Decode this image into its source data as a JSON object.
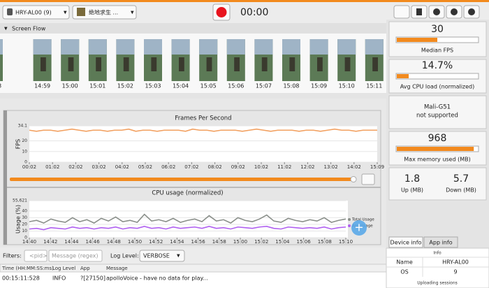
{
  "toolbar": {
    "device": "HRY-AL00 (9)",
    "app": "绝地求生 ...",
    "timer": "00:00"
  },
  "screen_flow": {
    "title": "Screen Flow",
    "frame_labels": [
      "58",
      "14:59",
      "15:00",
      "15:01",
      "15:02",
      "15:03",
      "15:04",
      "15:05",
      "15:06",
      "15:07",
      "15:08",
      "15:09",
      "15:10",
      "15:11"
    ]
  },
  "fps_chart": {
    "type": "line",
    "title": "Frames Per Second",
    "y_label": "FPS",
    "color": "#f2a060",
    "xtick_labels": [
      "00:02",
      "01:02",
      "02:02",
      "03:02",
      "04:02",
      "05:02",
      "06:02",
      "07:02",
      "08:02",
      "09:02",
      "10:02",
      "11:02",
      "12:02",
      "13:02",
      "14:02",
      "15:09"
    ],
    "ylim": [
      0,
      34.1
    ],
    "yticks": [
      0,
      10,
      20,
      34.1
    ],
    "values": [
      30,
      29,
      30,
      30,
      29,
      30,
      31,
      30,
      29,
      30,
      30,
      29,
      30,
      30,
      31,
      29,
      30,
      30,
      29,
      30,
      30,
      30,
      29,
      31,
      30,
      30,
      29,
      30,
      30,
      30,
      29,
      30,
      31,
      30,
      29,
      30,
      30,
      30,
      29,
      30,
      30,
      29,
      30,
      31,
      30,
      30,
      29,
      30,
      30,
      30
    ]
  },
  "cpu_chart": {
    "type": "line",
    "title": "CPU usage (normalized)",
    "y_label": "Usage (%)",
    "xtick_labels": [
      "14:40",
      "14:42",
      "14:44",
      "14:46",
      "14:48",
      "14:50",
      "14:52",
      "14:54",
      "14:56",
      "14:58",
      "15:00",
      "15:02",
      "15:04",
      "15:06",
      "15:08",
      "15:10"
    ],
    "ylim": [
      0,
      55.621
    ],
    "yticks": [
      0,
      10,
      20,
      30,
      40,
      {
        "value": 55.621,
        "label": "55,621"
      }
    ],
    "series": [
      {
        "name": "Total Usage",
        "color": "#8a8f8a",
        "values": [
          24,
          26,
          22,
          28,
          25,
          23,
          30,
          24,
          27,
          22,
          29,
          25,
          31,
          24,
          26,
          23,
          35,
          25,
          27,
          24,
          29,
          23,
          26,
          28,
          24,
          33,
          25,
          27,
          22,
          30,
          26,
          24,
          28,
          34,
          25,
          23,
          29,
          26,
          24,
          27,
          25,
          30,
          23,
          26,
          28
        ]
      },
      {
        "name": "App Usage",
        "color": "#b060f0",
        "values": [
          13,
          14,
          12,
          15,
          14,
          13,
          16,
          14,
          15,
          13,
          15,
          14,
          16,
          13,
          15,
          14,
          17,
          14,
          15,
          13,
          16,
          14,
          15,
          16,
          14,
          17,
          14,
          15,
          13,
          16,
          15,
          14,
          16,
          17,
          14,
          13,
          16,
          15,
          14,
          15,
          14,
          16,
          13,
          15,
          16
        ]
      }
    ]
  },
  "filters": {
    "label": "Filters:",
    "pid_placeholder": "<pid>",
    "message_placeholder": "Message (regex)",
    "log_level_label": "Log Level:",
    "log_level": "VERBOSE"
  },
  "log_table": {
    "headers": [
      "Time (HH:MM:SS:ms)",
      "Log Level",
      "App",
      "Message"
    ],
    "rows": [
      [
        "00:15:11:528",
        "INFO",
        "?[27150]",
        "apolloVoice - have no data for play..."
      ]
    ]
  },
  "metrics": {
    "median_fps": {
      "value": "30",
      "label": "Median FPS"
    },
    "avg_cpu": {
      "value": "14.7%",
      "label": "Avg CPU load (normalized)"
    },
    "gpu": {
      "name": "Mali-G51",
      "status": "not supported"
    },
    "max_memory": {
      "value": "968",
      "label": "Max memory used (MB)"
    },
    "up": {
      "value": "1.8",
      "label": "Up (MB)"
    },
    "down": {
      "value": "5.7",
      "label": "Down (MB)"
    }
  },
  "info_panel": {
    "tabs": [
      "Device info",
      "App info"
    ],
    "header": "Info",
    "rows": [
      [
        "Name",
        "HRY-AL00"
      ],
      [
        "OS",
        "9"
      ]
    ],
    "footer": "Uploading sessions"
  }
}
